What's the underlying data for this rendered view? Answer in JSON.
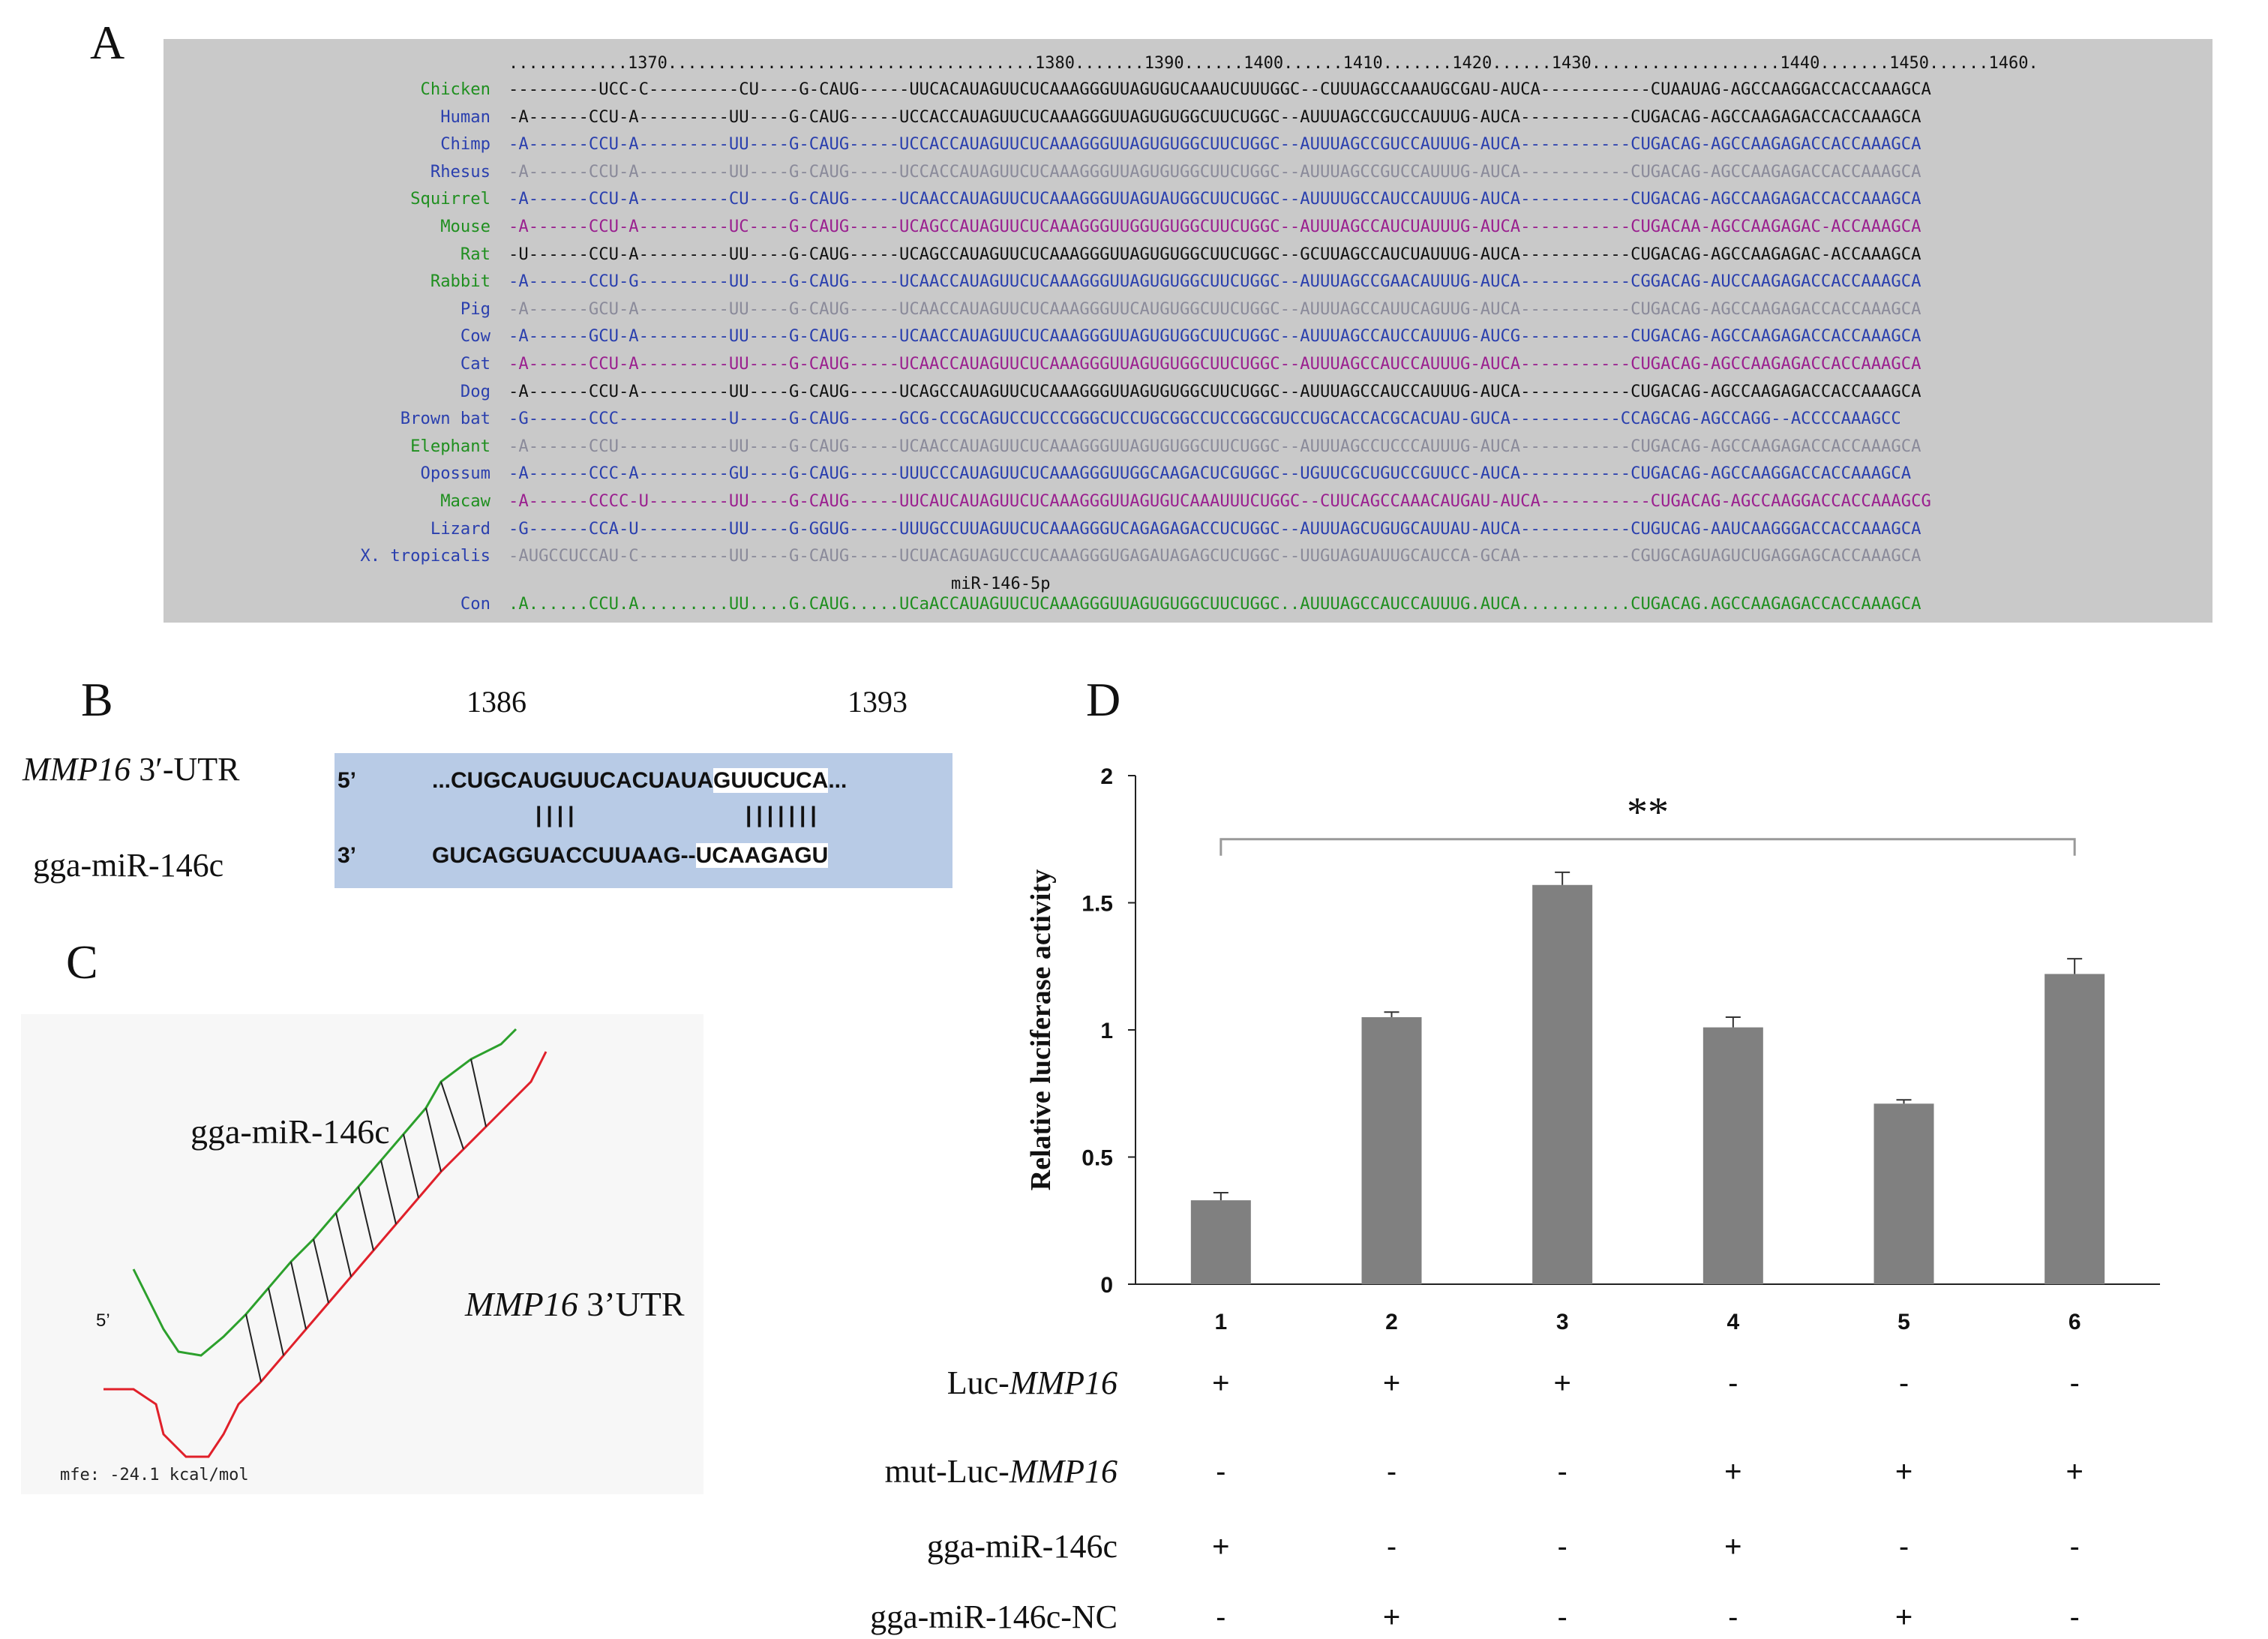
{
  "panels": {
    "a": "A",
    "b": "B",
    "c": "C",
    "d": "D"
  },
  "alignment": {
    "position_ruler": "............1370.....................................1380.......1390......1400......1410.......1420......1430...................1440.......1450......1460.",
    "mirna_label": "miR-146-5p",
    "rows": [
      {
        "name": "Chicken",
        "seq": "---------UCC-C---------CU----G-CAUG-----UUCACAUAGUUCUCAAAGGGUUAGUGUCAAAUCUUUGGC--CUUUAGCCAAAUGCGAU-AUCA-----------CUAAUAG-AGCCAAGGACCACCAAAGCA",
        "name_color": "#1f8f1f",
        "seq_color": "#111111"
      },
      {
        "name": "Human",
        "seq": "-A------CCU-A---------UU----G-CAUG-----UCCACCAUAGUUCUCAAAGGGUUAGUGUGGCUUCUGGC--AUUUAGCCGUCCAUUUG-AUCA-----------CUGACAG-AGCCAAGAGACCACCAAAGCA",
        "name_color": "#2a3fae",
        "seq_color": "#111111"
      },
      {
        "name": "Chimp",
        "seq": "-A------CCU-A---------UU----G-CAUG-----UCCACCAUAGUUCUCAAAGGGUUAGUGUGGCUUCUGGC--AUUUAGCCGUCCAUUUG-AUCA-----------CUGACAG-AGCCAAGAGACCACCAAAGCA",
        "name_color": "#2a3fae",
        "seq_color": "#2a3fae"
      },
      {
        "name": "Rhesus",
        "seq": "-A------CCU-A---------UU----G-CAUG-----UCCACCAUAGUUCUCAAAGGGUUAGUGUGGCUUCUGGC--AUUUAGCCGUCCAUUUG-AUCA-----------CUGACAG-AGCCAAGAGACCACCAAAGCA",
        "name_color": "#2a3fae",
        "seq_color": "#8a8a9a"
      },
      {
        "name": "Squirrel",
        "seq": "-A------CCU-A---------CU----G-CAUG-----UCAACCAUAGUUCUCAAAGGGUUAGUAUGGCUUCUGGC--AUUUUGCCAUCCAUUUG-AUCA-----------CUGACAG-AGCCAAGAGACCACCAAAGCA",
        "name_color": "#1f8f1f",
        "seq_color": "#2a3fae"
      },
      {
        "name": "Mouse",
        "seq": "-A------CCU-A---------UC----G-CAUG-----UCAGCCAUAGUUCUCAAAGGGUUGGUGUGGCUUCUGGC--AUUUAGCCAUCUAUUUG-AUCA-----------CUGACAA-AGCCAAGAGAC-ACCAAAGCA",
        "name_color": "#1f8f1f",
        "seq_color": "#9a1f8f"
      },
      {
        "name": "Rat",
        "seq": "-U------CCU-A---------UU----G-CAUG-----UCAGCCAUAGUUCUCAAAGGGUUAGUGUGGCUUCUGGC--GCUUAGCCAUCUAUUUG-AUCA-----------CUGACAG-AGCCAAGAGAC-ACCAAAGCA",
        "name_color": "#1f8f1f",
        "seq_color": "#111111"
      },
      {
        "name": "Rabbit",
        "seq": "-A------CCU-G---------UU----G-CAUG-----UCAACCAUAGUUCUCAAAGGGUUAGUGUGGCUUCUGGC--AUUUAGCCGAACAUUUG-AUCA-----------CGGACAG-AUCCAAGAGACCACCAAAGCA",
        "name_color": "#1f8f1f",
        "seq_color": "#2a3fae"
      },
      {
        "name": "Pig",
        "seq": "-A------GCU-A---------UU----G-CAUG-----UCAACCAUAGUUCUCAAAGGGUUCAUGUGGCUUCUGGC--AUUUAGCCAUUCAGUUG-AUCA-----------CUGACAG-AGCCAAGAGACCACCAAAGCA",
        "name_color": "#2a3fae",
        "seq_color": "#8a8a9a"
      },
      {
        "name": "Cow",
        "seq": "-A------GCU-A---------UU----G-CAUG-----UCAACCAUAGUUCUCAAAGGGUUAGUGUGGCUUCUGGC--AUUUAGCCAUCCAUUUG-AUCG-----------CUGACAG-AGCCAAGAGACCACCAAAGCA",
        "name_color": "#2a3fae",
        "seq_color": "#2a3fae"
      },
      {
        "name": "Cat",
        "seq": "-A------CCU-A---------UU----G-CAUG-----UCAACCAUAGUUCUCAAAGGGUUAGUGUGGCUUCUGGC--AUUUAGCCAUCCAUUUG-AUCA-----------CUGACAG-AGCCAAGAGACCACCAAAGCA",
        "name_color": "#2a3fae",
        "seq_color": "#9a1f8f"
      },
      {
        "name": "Dog",
        "seq": "-A------CCU-A---------UU----G-CAUG-----UCAGCCAUAGUUCUCAAAGGGUUAGUGUGGCUUCUGGC--AUUUAGCCAUCCAUUUG-AUCA-----------CUGACAG-AGCCAAGAGACCACCAAAGCA",
        "name_color": "#2a3fae",
        "seq_color": "#111111"
      },
      {
        "name": "Brown bat",
        "seq": "-G------CCC-----------U-----G-CAUG-----GCG-CCGCAGUCCUCCCGGGCUCCUGCGGCCUCCGGCGUCCUGCACCACGCACUAU-GUCA-----------CCAGCAG-AGCCAGG--ACCCCAAAGCC",
        "name_color": "#2a3fae",
        "seq_color": "#2a3fae"
      },
      {
        "name": "Elephant",
        "seq": "-A------CCU-----------UU----G-CAUG-----UCAACCAUAGUUCUCAAAGGGUUAGUGUGGCUUCUGGC--AUUUAGCCUCCCAUUUG-AUCA-----------CUGACAG-AGCCAAGAGACCACCAAAGCA",
        "name_color": "#1f8f1f",
        "seq_color": "#8a8a9a"
      },
      {
        "name": "Opossum",
        "seq": "-A------CCC-A---------GU----G-CAUG-----UUUCCCAUAGUUCUCAAAGGGUUGGCAAGACUCGUGGC--UGUUCGCUGUCCGUUCC-AUCA-----------CUGACAG-AGCCAAGGACCACCAAAGCA",
        "name_color": "#2a3fae",
        "seq_color": "#2a3fae"
      },
      {
        "name": "Macaw",
        "seq": "-A------CCCC-U--------UU----G-CAUG-----UUCAUCAUAGUUCUCAAAGGGUUAGUGUCAAAUUUCUGGC--CUUCAGCCAAACAUGAU-AUCA-----------CUGACAG-AGCCAAGGACCACCAAAGCG",
        "name_color": "#1f8f1f",
        "seq_color": "#9a1f8f"
      },
      {
        "name": "Lizard",
        "seq": "-G------CCA-U---------UU----G-GGUG-----UUUGCCUUAGUUCUCAAAGGGUCAGAGAGACCUCUGGC--AUUUAGCUGUGCAUUAU-AUCA-----------CUGUCAG-AAUCAAGGGACCACCAAAGCA",
        "name_color": "#2a3fae",
        "seq_color": "#2a3fae"
      },
      {
        "name": "X. tropicalis",
        "seq": "-AUGCCUCCAU-C---------UU----G-CAUG-----UCUACAGUAGUCCUCAAAGGGUGAGAUAGAGCUCUGGC--UUGUAGUAUUGCAUCCA-GCAA-----------CGUGCAGUAGUCUGAGGAGCACCAAAGCA",
        "name_color": "#2a3fae",
        "seq_color": "#8a8a9a"
      },
      {
        "name": "Con",
        "seq": ".A......CCU.A.........UU....G.CAUG.....UCaACCAUAGUUCUCAAAGGGUUAGUGUGGCUUCUGGC..AUUUAGCCAUCCAUUUG.AUCA...........CUGACAG.AGCCAAGAGACCACCAAAGCA",
        "name_color": "#2a3fae",
        "seq_color": "#1f8f1f"
      }
    ]
  },
  "panel_b": {
    "pos_start": "1386",
    "pos_end": "1393",
    "utr_label_italic": "MMP16",
    "utr_label_rest": " 3′-UTR",
    "mir_label": "gga-miR-146c",
    "five_prime": "5’",
    "three_prime": "3’",
    "utr_seq_a": "...CUGCAUGUUCACUAUA",
    "utr_seq_b": "GUUCUCA",
    "utr_seq_c": "...",
    "pair_bars_1": "||||",
    "pair_bars_2": "|||||||",
    "mir_seq_a": "GUCAGGUACCUUAAG--",
    "mir_seq_b": "UCAAGAGU"
  },
  "panel_c": {
    "mir_label": "gga-miR-146c",
    "utr_label_italic": "MMP16",
    "utr_label_rest": " 3’UTR",
    "five_prime": "5’",
    "mfe": "mfe: -24.1 kcal/mol"
  },
  "chart_data": {
    "type": "bar",
    "categories": [
      "1",
      "2",
      "3",
      "4",
      "5",
      "6"
    ],
    "values": [
      0.33,
      1.05,
      1.57,
      1.01,
      0.71,
      1.22
    ],
    "errors": [
      0.03,
      0.02,
      0.05,
      0.04,
      0.015,
      0.06
    ],
    "ylabel": "Relative luciferase activity",
    "ylim": [
      0,
      2
    ],
    "yticks": [
      "0",
      "0.5",
      "1",
      "1.5",
      "2"
    ],
    "bar_color": "#808080",
    "significance": {
      "label": "**",
      "from": "1",
      "to": "6"
    },
    "conditions": [
      {
        "label_plain": "Luc-",
        "label_italic": "MMP16",
        "values": [
          "+",
          "+",
          "+",
          "-",
          "-",
          "-"
        ]
      },
      {
        "label_plain": "mut-Luc-",
        "label_italic": "MMP16",
        "values": [
          "-",
          "-",
          "-",
          "+",
          "+",
          "+"
        ]
      },
      {
        "label_plain": "gga-miR-146c",
        "label_italic": "",
        "values": [
          "+",
          "-",
          "-",
          "+",
          "-",
          "-"
        ]
      },
      {
        "label_plain": "gga-miR-146c-NC",
        "label_italic": "",
        "values": [
          "-",
          "+",
          "-",
          "-",
          "+",
          "-"
        ]
      }
    ]
  }
}
